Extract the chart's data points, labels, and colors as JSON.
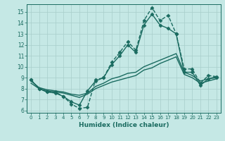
{
  "xlabel": "Humidex (Indice chaleur)",
  "bg_color": "#c5e8e5",
  "grid_color": "#a8ceca",
  "line_color": "#1a6b60",
  "xlim": [
    -0.5,
    23.5
  ],
  "ylim": [
    5.8,
    15.7
  ],
  "yticks": [
    6,
    7,
    8,
    9,
    10,
    11,
    12,
    13,
    14,
    15
  ],
  "xticks": [
    0,
    1,
    2,
    3,
    4,
    5,
    6,
    7,
    8,
    9,
    10,
    11,
    12,
    13,
    14,
    15,
    16,
    17,
    18,
    19,
    20,
    21,
    22,
    23
  ],
  "lines": [
    {
      "x": [
        0,
        1,
        2,
        3,
        4,
        5,
        6,
        7,
        8,
        9,
        10,
        11,
        12,
        13,
        14,
        15,
        16,
        17,
        18,
        19,
        20,
        21,
        22,
        23
      ],
      "y": [
        8.8,
        8.0,
        7.7,
        7.7,
        7.3,
        6.6,
        6.2,
        6.3,
        8.8,
        9.0,
        10.4,
        11.3,
        12.3,
        11.5,
        14.2,
        15.4,
        14.2,
        14.7,
        13.0,
        9.8,
        9.8,
        8.5,
        9.2,
        9.1
      ],
      "marker": "D",
      "markersize": 2.5,
      "linewidth": 1.0,
      "linestyle": "--"
    },
    {
      "x": [
        0,
        1,
        2,
        3,
        4,
        5,
        6,
        7,
        8,
        9,
        10,
        11,
        12,
        13,
        14,
        15,
        16,
        17,
        18,
        19,
        20,
        21,
        22,
        23
      ],
      "y": [
        8.8,
        8.0,
        7.7,
        7.6,
        7.3,
        6.8,
        6.5,
        7.8,
        8.7,
        9.0,
        10.2,
        11.0,
        12.0,
        11.3,
        13.8,
        14.8,
        13.8,
        13.5,
        13.0,
        9.5,
        9.5,
        8.3,
        8.9,
        9.0
      ],
      "marker": "D",
      "markersize": 2.5,
      "linewidth": 1.0,
      "linestyle": "-"
    },
    {
      "x": [
        0,
        1,
        2,
        3,
        4,
        5,
        6,
        7,
        8,
        9,
        10,
        11,
        12,
        13,
        14,
        15,
        16,
        17,
        18,
        19,
        20,
        21,
        22,
        23
      ],
      "y": [
        8.7,
        8.1,
        7.9,
        7.8,
        7.7,
        7.5,
        7.4,
        7.6,
        8.2,
        8.5,
        8.9,
        9.1,
        9.4,
        9.5,
        10.0,
        10.3,
        10.6,
        10.9,
        11.2,
        9.5,
        9.2,
        8.7,
        8.9,
        9.1
      ],
      "marker": null,
      "markersize": 0,
      "linewidth": 1.0,
      "linestyle": "-"
    },
    {
      "x": [
        0,
        1,
        2,
        3,
        4,
        5,
        6,
        7,
        8,
        9,
        10,
        11,
        12,
        13,
        14,
        15,
        16,
        17,
        18,
        19,
        20,
        21,
        22,
        23
      ],
      "y": [
        8.5,
        8.0,
        7.8,
        7.7,
        7.6,
        7.4,
        7.2,
        7.5,
        8.0,
        8.3,
        8.6,
        8.8,
        9.0,
        9.2,
        9.7,
        9.9,
        10.3,
        10.6,
        10.9,
        9.3,
        9.0,
        8.5,
        8.7,
        8.9
      ],
      "marker": null,
      "markersize": 0,
      "linewidth": 1.0,
      "linestyle": "-"
    }
  ]
}
